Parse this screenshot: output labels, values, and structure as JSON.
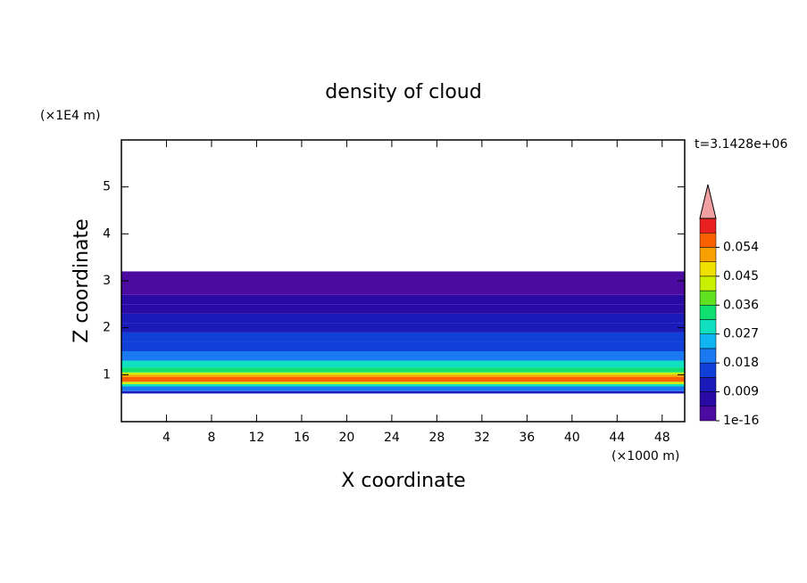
{
  "chart_data": {
    "type": "contour",
    "title": "density of cloud",
    "x_label": "X coordinate",
    "y_label": "Z coordinate",
    "x_unit": "(×1000 m)",
    "y_unit": "(×1E4 m)",
    "time_label": "t=3.1428e+06",
    "xlim": [
      0,
      50
    ],
    "xticks": [
      4,
      8,
      12,
      16,
      20,
      24,
      28,
      32,
      36,
      40,
      44,
      48
    ],
    "ylim": [
      0,
      6
    ],
    "yticks": [
      1,
      2,
      3,
      4,
      5
    ],
    "z_edges": [
      0.6,
      0.65,
      0.75,
      0.8,
      0.85,
      0.95,
      1.0,
      1.05,
      1.15,
      1.3,
      1.5,
      1.7,
      1.9,
      2.1,
      2.3,
      2.5,
      2.7,
      3.2
    ],
    "values": [
      0.012,
      0.02,
      0.03,
      0.045,
      0.056,
      0.05,
      0.042,
      0.034,
      0.028,
      0.022,
      0.017,
      0.014,
      0.011,
      0.012,
      0.008,
      0.006,
      0.003
    ],
    "clim": [
      1e-16,
      0.063
    ],
    "cticks": [
      1e-16,
      0.009,
      0.018,
      0.027,
      0.036,
      0.045,
      0.054
    ],
    "colors": [
      "#4b0aa0",
      "#2a0aa5",
      "#1a1ab8",
      "#1040d8",
      "#1a78f0",
      "#10b4f0",
      "#10e0c0",
      "#10e070",
      "#60e020",
      "#c8f000",
      "#f0e000",
      "#f8a000",
      "#f86000",
      "#e82020"
    ],
    "extend_color": "#f0a0a0"
  }
}
